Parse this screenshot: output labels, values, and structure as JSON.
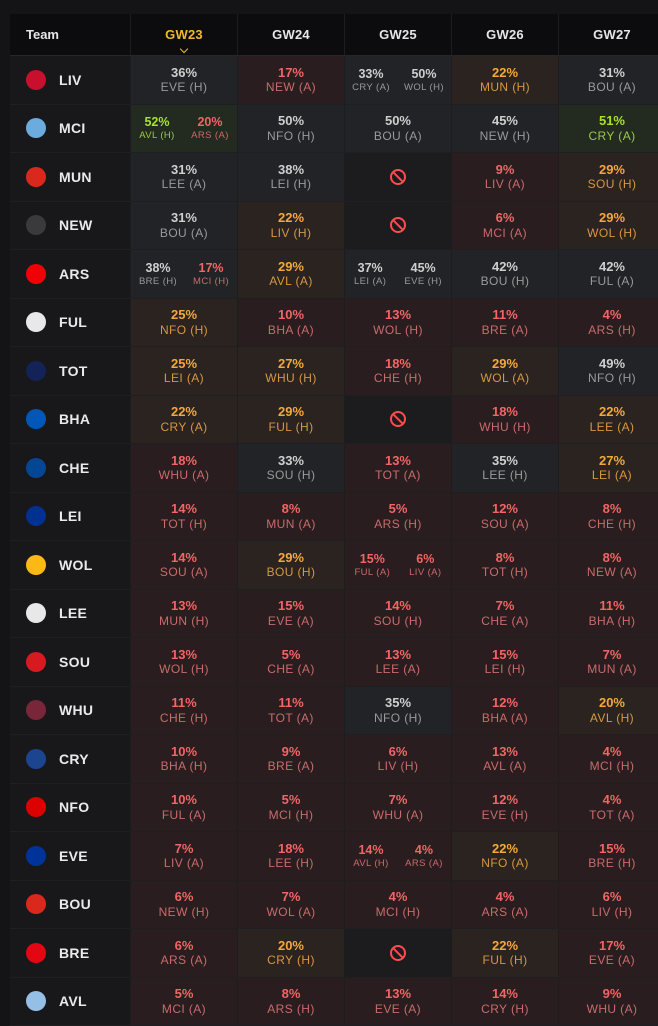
{
  "header": {
    "team_label": "Team",
    "gameweeks": [
      "GW23",
      "GW24",
      "GW25",
      "GW26",
      "GW27"
    ],
    "active_gameweek": "GW23"
  },
  "teams": [
    {
      "abbr": "LIV",
      "crest": "#c8102e",
      "cells": [
        [
          {
            "p": "36%",
            "o": "EVE (H)",
            "c": "grey"
          }
        ],
        [
          {
            "p": "17%",
            "o": "NEW (A)",
            "c": "red"
          }
        ],
        [
          {
            "p": "33%",
            "o": "CRY (A)",
            "c": "grey"
          },
          {
            "p": "50%",
            "o": "WOL (H)",
            "c": "grey"
          }
        ],
        [
          {
            "p": "22%",
            "o": "MUN (H)",
            "c": "orange"
          }
        ],
        [
          {
            "p": "31%",
            "o": "BOU (A)",
            "c": "grey"
          }
        ]
      ]
    },
    {
      "abbr": "MCI",
      "crest": "#6cabdd",
      "cells": [
        [
          {
            "p": "52%",
            "o": "AVL (H)",
            "c": "green"
          },
          {
            "p": "20%",
            "o": "ARS (A)",
            "c": "red"
          }
        ],
        [
          {
            "p": "50%",
            "o": "NFO (H)",
            "c": "grey"
          }
        ],
        [
          {
            "p": "50%",
            "o": "BOU (A)",
            "c": "grey"
          }
        ],
        [
          {
            "p": "45%",
            "o": "NEW (H)",
            "c": "grey"
          }
        ],
        [
          {
            "p": "51%",
            "o": "CRY (A)",
            "c": "green"
          }
        ]
      ]
    },
    {
      "abbr": "MUN",
      "crest": "#da291c",
      "cells": [
        [
          {
            "p": "31%",
            "o": "LEE (A)",
            "c": "grey"
          }
        ],
        [
          {
            "p": "38%",
            "o": "LEI (H)",
            "c": "grey"
          }
        ],
        [],
        [
          {
            "p": "9%",
            "o": "LIV (A)",
            "c": "red"
          }
        ],
        [
          {
            "p": "29%",
            "o": "SOU (H)",
            "c": "orange"
          }
        ]
      ]
    },
    {
      "abbr": "NEW",
      "crest": "#3a3a3a",
      "cells": [
        [
          {
            "p": "31%",
            "o": "BOU (A)",
            "c": "grey"
          }
        ],
        [
          {
            "p": "22%",
            "o": "LIV (H)",
            "c": "orange"
          }
        ],
        [],
        [
          {
            "p": "6%",
            "o": "MCI (A)",
            "c": "red"
          }
        ],
        [
          {
            "p": "29%",
            "o": "WOL (H)",
            "c": "orange"
          }
        ]
      ]
    },
    {
      "abbr": "ARS",
      "crest": "#ef0107",
      "cells": [
        [
          {
            "p": "38%",
            "o": "BRE (H)",
            "c": "grey"
          },
          {
            "p": "17%",
            "o": "MCI (H)",
            "c": "red"
          }
        ],
        [
          {
            "p": "29%",
            "o": "AVL (A)",
            "c": "orange"
          }
        ],
        [
          {
            "p": "37%",
            "o": "LEI (A)",
            "c": "grey"
          },
          {
            "p": "45%",
            "o": "EVE (H)",
            "c": "grey"
          }
        ],
        [
          {
            "p": "42%",
            "o": "BOU (H)",
            "c": "grey"
          }
        ],
        [
          {
            "p": "42%",
            "o": "FUL (A)",
            "c": "grey"
          }
        ]
      ]
    },
    {
      "abbr": "FUL",
      "crest": "#e8e8e8",
      "cells": [
        [
          {
            "p": "25%",
            "o": "NFO (H)",
            "c": "orange"
          }
        ],
        [
          {
            "p": "10%",
            "o": "BHA (A)",
            "c": "red"
          }
        ],
        [
          {
            "p": "13%",
            "o": "WOL (H)",
            "c": "red"
          }
        ],
        [
          {
            "p": "11%",
            "o": "BRE (A)",
            "c": "red"
          }
        ],
        [
          {
            "p": "4%",
            "o": "ARS (H)",
            "c": "red"
          }
        ]
      ]
    },
    {
      "abbr": "TOT",
      "crest": "#132257",
      "cells": [
        [
          {
            "p": "25%",
            "o": "LEI (A)",
            "c": "orange"
          }
        ],
        [
          {
            "p": "27%",
            "o": "WHU (H)",
            "c": "orange"
          }
        ],
        [
          {
            "p": "18%",
            "o": "CHE (H)",
            "c": "red"
          }
        ],
        [
          {
            "p": "29%",
            "o": "WOL (A)",
            "c": "orange"
          }
        ],
        [
          {
            "p": "49%",
            "o": "NFO (H)",
            "c": "grey"
          }
        ]
      ]
    },
    {
      "abbr": "BHA",
      "crest": "#0057b8",
      "cells": [
        [
          {
            "p": "22%",
            "o": "CRY (A)",
            "c": "orange"
          }
        ],
        [
          {
            "p": "29%",
            "o": "FUL (H)",
            "c": "orange"
          }
        ],
        [],
        [
          {
            "p": "18%",
            "o": "WHU (H)",
            "c": "red"
          }
        ],
        [
          {
            "p": "22%",
            "o": "LEE (A)",
            "c": "orange"
          }
        ]
      ]
    },
    {
      "abbr": "CHE",
      "crest": "#034694",
      "cells": [
        [
          {
            "p": "18%",
            "o": "WHU (A)",
            "c": "red"
          }
        ],
        [
          {
            "p": "33%",
            "o": "SOU (H)",
            "c": "grey"
          }
        ],
        [
          {
            "p": "13%",
            "o": "TOT (A)",
            "c": "red"
          }
        ],
        [
          {
            "p": "35%",
            "o": "LEE (H)",
            "c": "grey"
          }
        ],
        [
          {
            "p": "27%",
            "o": "LEI (A)",
            "c": "orange"
          }
        ]
      ]
    },
    {
      "abbr": "LEI",
      "crest": "#003090",
      "cells": [
        [
          {
            "p": "14%",
            "o": "TOT (H)",
            "c": "red"
          }
        ],
        [
          {
            "p": "8%",
            "o": "MUN (A)",
            "c": "red"
          }
        ],
        [
          {
            "p": "5%",
            "o": "ARS (H)",
            "c": "red"
          }
        ],
        [
          {
            "p": "12%",
            "o": "SOU (A)",
            "c": "red"
          }
        ],
        [
          {
            "p": "8%",
            "o": "CHE (H)",
            "c": "red"
          }
        ]
      ]
    },
    {
      "abbr": "WOL",
      "crest": "#fdb913",
      "cells": [
        [
          {
            "p": "14%",
            "o": "SOU (A)",
            "c": "red"
          }
        ],
        [
          {
            "p": "29%",
            "o": "BOU (H)",
            "c": "orange"
          }
        ],
        [
          {
            "p": "15%",
            "o": "FUL (A)",
            "c": "red"
          },
          {
            "p": "6%",
            "o": "LIV (A)",
            "c": "red"
          }
        ],
        [
          {
            "p": "8%",
            "o": "TOT (H)",
            "c": "red"
          }
        ],
        [
          {
            "p": "8%",
            "o": "NEW (A)",
            "c": "red"
          }
        ]
      ]
    },
    {
      "abbr": "LEE",
      "crest": "#e8e8e8",
      "cells": [
        [
          {
            "p": "13%",
            "o": "MUN (H)",
            "c": "red"
          }
        ],
        [
          {
            "p": "15%",
            "o": "EVE (A)",
            "c": "red"
          }
        ],
        [
          {
            "p": "14%",
            "o": "SOU (H)",
            "c": "red"
          }
        ],
        [
          {
            "p": "7%",
            "o": "CHE (A)",
            "c": "red"
          }
        ],
        [
          {
            "p": "11%",
            "o": "BHA (H)",
            "c": "red"
          }
        ]
      ]
    },
    {
      "abbr": "SOU",
      "crest": "#d71920",
      "cells": [
        [
          {
            "p": "13%",
            "o": "WOL (H)",
            "c": "red"
          }
        ],
        [
          {
            "p": "5%",
            "o": "CHE (A)",
            "c": "red"
          }
        ],
        [
          {
            "p": "13%",
            "o": "LEE (A)",
            "c": "red"
          }
        ],
        [
          {
            "p": "15%",
            "o": "LEI (H)",
            "c": "red"
          }
        ],
        [
          {
            "p": "7%",
            "o": "MUN (A)",
            "c": "red"
          }
        ]
      ]
    },
    {
      "abbr": "WHU",
      "crest": "#7a263a",
      "cells": [
        [
          {
            "p": "11%",
            "o": "CHE (H)",
            "c": "red"
          }
        ],
        [
          {
            "p": "11%",
            "o": "TOT (A)",
            "c": "red"
          }
        ],
        [
          {
            "p": "35%",
            "o": "NFO (H)",
            "c": "grey"
          }
        ],
        [
          {
            "p": "12%",
            "o": "BHA (A)",
            "c": "red"
          }
        ],
        [
          {
            "p": "20%",
            "o": "AVL (H)",
            "c": "orange"
          }
        ]
      ]
    },
    {
      "abbr": "CRY",
      "crest": "#1b458f",
      "cells": [
        [
          {
            "p": "10%",
            "o": "BHA (H)",
            "c": "red"
          }
        ],
        [
          {
            "p": "9%",
            "o": "BRE (A)",
            "c": "red"
          }
        ],
        [
          {
            "p": "6%",
            "o": "LIV (H)",
            "c": "red"
          }
        ],
        [
          {
            "p": "13%",
            "o": "AVL (A)",
            "c": "red"
          }
        ],
        [
          {
            "p": "4%",
            "o": "MCI (H)",
            "c": "red"
          }
        ]
      ]
    },
    {
      "abbr": "NFO",
      "crest": "#dd0000",
      "cells": [
        [
          {
            "p": "10%",
            "o": "FUL (A)",
            "c": "red"
          }
        ],
        [
          {
            "p": "5%",
            "o": "MCI (H)",
            "c": "red"
          }
        ],
        [
          {
            "p": "7%",
            "o": "WHU (A)",
            "c": "red"
          }
        ],
        [
          {
            "p": "12%",
            "o": "EVE (H)",
            "c": "red"
          }
        ],
        [
          {
            "p": "4%",
            "o": "TOT (A)",
            "c": "red"
          }
        ]
      ]
    },
    {
      "abbr": "EVE",
      "crest": "#003399",
      "cells": [
        [
          {
            "p": "7%",
            "o": "LIV (A)",
            "c": "red"
          }
        ],
        [
          {
            "p": "18%",
            "o": "LEE (H)",
            "c": "red"
          }
        ],
        [
          {
            "p": "14%",
            "o": "AVL (H)",
            "c": "red"
          },
          {
            "p": "4%",
            "o": "ARS (A)",
            "c": "red"
          }
        ],
        [
          {
            "p": "22%",
            "o": "NFO (A)",
            "c": "orange"
          }
        ],
        [
          {
            "p": "15%",
            "o": "BRE (H)",
            "c": "red"
          }
        ]
      ]
    },
    {
      "abbr": "BOU",
      "crest": "#da291c",
      "cells": [
        [
          {
            "p": "6%",
            "o": "NEW (H)",
            "c": "red"
          }
        ],
        [
          {
            "p": "7%",
            "o": "WOL (A)",
            "c": "red"
          }
        ],
        [
          {
            "p": "4%",
            "o": "MCI (H)",
            "c": "red"
          }
        ],
        [
          {
            "p": "4%",
            "o": "ARS (A)",
            "c": "red"
          }
        ],
        [
          {
            "p": "6%",
            "o": "LIV (H)",
            "c": "red"
          }
        ]
      ]
    },
    {
      "abbr": "BRE",
      "crest": "#e30613",
      "cells": [
        [
          {
            "p": "6%",
            "o": "ARS (A)",
            "c": "red"
          }
        ],
        [
          {
            "p": "20%",
            "o": "CRY (H)",
            "c": "orange"
          }
        ],
        [],
        [
          {
            "p": "22%",
            "o": "FUL (H)",
            "c": "orange"
          }
        ],
        [
          {
            "p": "17%",
            "o": "EVE (A)",
            "c": "red"
          }
        ]
      ]
    },
    {
      "abbr": "AVL",
      "crest": "#95bfe5",
      "cells": [
        [
          {
            "p": "5%",
            "o": "MCI (A)",
            "c": "red"
          }
        ],
        [
          {
            "p": "8%",
            "o": "ARS (H)",
            "c": "red"
          }
        ],
        [
          {
            "p": "13%",
            "o": "EVE (A)",
            "c": "red"
          }
        ],
        [
          {
            "p": "14%",
            "o": "CRY (H)",
            "c": "red"
          }
        ],
        [
          {
            "p": "9%",
            "o": "WHU (A)",
            "c": "red"
          }
        ]
      ]
    }
  ]
}
